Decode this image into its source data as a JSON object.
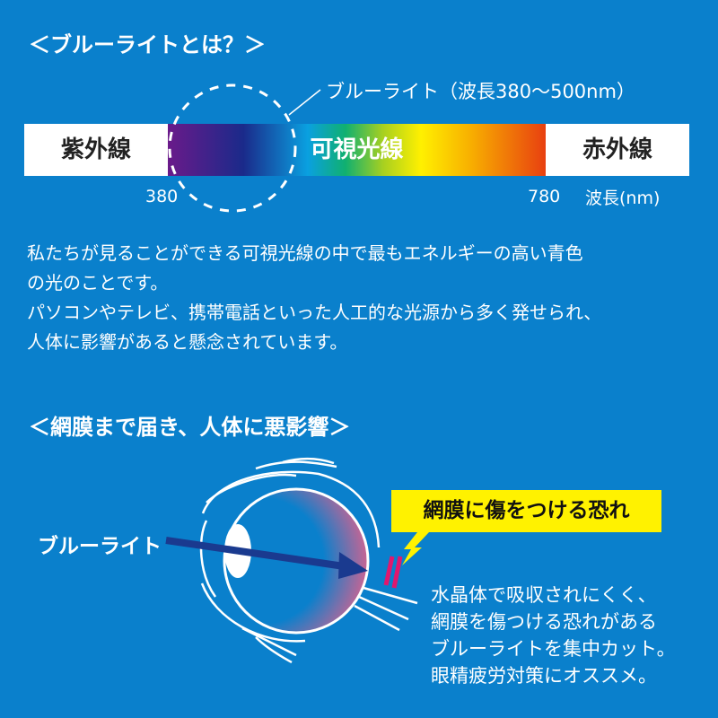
{
  "section1": {
    "heading": "＜ブルーライトとは？＞",
    "bluelight_label": "ブルーライト（波長380〜500nm）",
    "spectrum": {
      "left_label": "紫外線",
      "center_label": "可視光線",
      "right_label": "赤外線",
      "start_tick": "380",
      "end_tick": "780",
      "axis_unit": "波長(nm)"
    },
    "paragraph_lines": [
      "私たちが見ることができる可視光線の中で最もエネルギーの高い青色",
      "の光のことです。",
      "パソコンやテレビ、携帯電話といった人工的な光源から多く発せられ、",
      "人体に影響があると懸念されています。"
    ]
  },
  "section2": {
    "heading": "＜網膜まで届き、人体に悪影響＞",
    "arrow_label": "ブルーライト",
    "callout": "網膜に傷をつける恐れ",
    "description_lines": [
      "水晶体で吸収されにくく、",
      "網膜を傷つける恐れがある",
      "ブルーライトを集中カット。",
      "眼精疲労対策にオススメ。"
    ]
  },
  "colors": {
    "background": "#0a80cc",
    "callout": "#fff200",
    "arrow": "#1a3a8f",
    "damage_mark": "#e0186e"
  }
}
